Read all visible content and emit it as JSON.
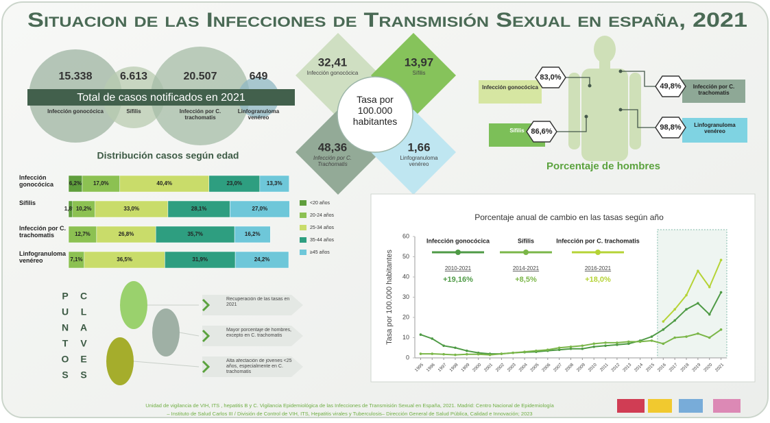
{
  "title": "Situacion de las Infecciones de Transmisión Sexual en españa, 2021",
  "totals": {
    "label": "Total de casos notificados en 2021",
    "items": [
      {
        "value": "15.338",
        "name": "Infección gonocócica"
      },
      {
        "value": "6.613",
        "name": "Sífilis"
      },
      {
        "value": "20.507",
        "name": "Infección por C. trachomatis"
      },
      {
        "value": "649",
        "name": "Linfogranuloma venéreo"
      }
    ]
  },
  "rates": {
    "center": "Tasa por 100.000 habitantes",
    "items": [
      {
        "value": "32,41",
        "name": "Infección gonocócica"
      },
      {
        "value": "13,97",
        "name": "Sífilis"
      },
      {
        "value": "48,36",
        "name": "Infección por C. Trachomatis"
      },
      {
        "value": "1,66",
        "name": "Linfogranuloma venéreo"
      }
    ]
  },
  "men": {
    "title": "Porcentaje de hombres",
    "items": [
      {
        "value": "83,0%",
        "name": "Infección gonocócica"
      },
      {
        "value": "86,6%",
        "name": "Sífilis"
      },
      {
        "value": "49,8%",
        "name": "Infección por C. trachomatis"
      },
      {
        "value": "98,8%",
        "name": "Linfogranuloma venéreo"
      }
    ]
  },
  "keys": {
    "left": [
      "P",
      "U",
      "N",
      "T",
      "O",
      "S"
    ],
    "right": [
      "C",
      "L",
      "A",
      "V",
      "E",
      "S"
    ],
    "items": [
      "Recuperación de las tasas en 2021",
      "Mayor porcentaje de hombres, excepto en C. trachomatis",
      "Alta afectación de jóvenes <25 años, especialmente en C. trachomatis"
    ]
  },
  "footer": [
    "Unidad de vigilancia de VIH, ITS , hepatitis B y C. Vigilancia Epidemiológica de las Infecciones de Transmisión Sexual en España, 2021. Madrid: Centro Nacional de Epidemiología",
    "– Instituto de Salud Carlos III / División de Control de VIH, ITS, Hepatitis virales y Tuberculosis– Dirección General de Salud Pública, Calidad e Innovación; 2023"
  ],
  "chart_data": [
    {
      "type": "stacked_barh",
      "title": "Distribución casos según edad",
      "categories": [
        "Infección gonocócica",
        "Sífilis",
        "Infección por C. trachomatis",
        "Linfogranuloma venéreo"
      ],
      "xlim": [
        0,
        100
      ],
      "series": [
        {
          "name": "<20 años",
          "color": "#5f9e3c",
          "values": [
            6.2,
            1.8,
            null,
            null
          ],
          "value_labels": [
            "6,2%",
            "1,8%",
            null,
            null
          ]
        },
        {
          "name": "20-24 años",
          "color": "#8cc152",
          "values": [
            17.0,
            10.2,
            12.7,
            7.1
          ],
          "value_labels": [
            "17,0%",
            "10,2%",
            "12,7%",
            "7,1%"
          ]
        },
        {
          "name": "25-34 años",
          "color": "#c9dc6a",
          "values": [
            40.4,
            33.0,
            26.8,
            36.5
          ],
          "value_labels": [
            "40,4%",
            "33,0%",
            "26,8%",
            "36,5%"
          ]
        },
        {
          "name": "35-44 años",
          "color": "#2e9e80",
          "values": [
            23.0,
            28.1,
            35.7,
            31.9
          ],
          "value_labels": [
            "23,0%",
            "28,1%",
            "35,7%",
            "31,9%"
          ]
        },
        {
          "name": "≥45 años",
          "color": "#6ec7d9",
          "values": [
            13.3,
            27.0,
            16.2,
            24.2
          ],
          "value_labels": [
            "13,3%",
            "27,0%",
            "16,2%",
            "24,2%"
          ]
        }
      ]
    },
    {
      "type": "line",
      "title": "Porcentaje anual de cambio en las tasas según año",
      "ylabel": "Tasa por 100.000 habitantes",
      "x": [
        1995,
        1996,
        1997,
        1998,
        1999,
        2000,
        2001,
        2002,
        2003,
        2004,
        2005,
        2006,
        2007,
        2008,
        2009,
        2010,
        2011,
        2012,
        2013,
        2014,
        2015,
        2016,
        2017,
        2018,
        2019,
        2020,
        2021
      ],
      "xlim": [
        1994.5,
        2021.5
      ],
      "xticks": [
        1995,
        1996,
        1997,
        1998,
        1999,
        2000,
        2001,
        2002,
        2003,
        2004,
        2005,
        2006,
        2007,
        2008,
        2009,
        2010,
        2011,
        2012,
        2013,
        2014,
        2015,
        2016,
        2017,
        2018,
        2019,
        2020,
        2021
      ],
      "ylim": [
        0,
        60
      ],
      "yticks": [
        0,
        10,
        20,
        30,
        40,
        50,
        60
      ],
      "grid": false,
      "series": [
        {
          "name": "Infección gonocócica",
          "color": "#4e9a45",
          "period": "2010-2021",
          "change": "+19,16%",
          "values": [
            11.5,
            9.5,
            6,
            5,
            3.5,
            2.5,
            2,
            2,
            2.5,
            2.8,
            3,
            3.5,
            4,
            4.5,
            4.5,
            5.5,
            6,
            6.5,
            7,
            8.5,
            10.5,
            14,
            18.5,
            24,
            27,
            21.5,
            32.4
          ]
        },
        {
          "name": "Sífilis",
          "color": "#7ab648",
          "period": "2014-2021",
          "change": "+8,5%",
          "values": [
            2,
            2,
            1.8,
            1.5,
            1.8,
            1.8,
            1.5,
            2,
            2.5,
            3,
            3.5,
            4,
            5,
            5.5,
            6,
            7,
            7.5,
            7.5,
            8,
            8,
            8.5,
            7,
            10,
            10.5,
            12,
            10,
            14
          ]
        },
        {
          "name": "Infección por C. trachomatis",
          "color": "#b5d335",
          "period": "2016-2021",
          "change": "+18,0%",
          "values": [
            null,
            null,
            null,
            null,
            null,
            null,
            null,
            null,
            null,
            null,
            null,
            null,
            null,
            null,
            null,
            null,
            null,
            null,
            null,
            null,
            null,
            18,
            24,
            31,
            43,
            35,
            48.4
          ]
        }
      ]
    }
  ]
}
